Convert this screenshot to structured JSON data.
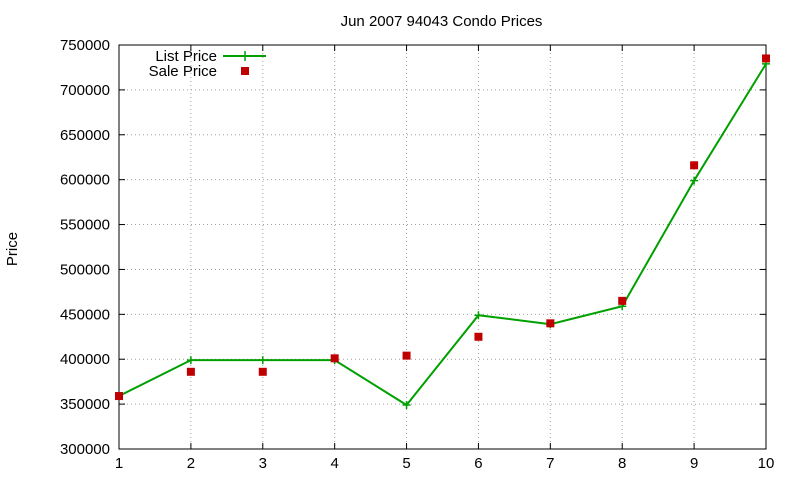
{
  "chart_data": {
    "type": "line",
    "title": "Jun 2007 94043 Condo Prices",
    "xlabel": "",
    "ylabel": "Price",
    "xlim": [
      1,
      10
    ],
    "ylim": [
      300000,
      750000
    ],
    "x_ticks": [
      1,
      2,
      3,
      4,
      5,
      6,
      7,
      8,
      9,
      10
    ],
    "y_ticks": [
      300000,
      350000,
      400000,
      450000,
      500000,
      550000,
      600000,
      650000,
      700000,
      750000
    ],
    "grid": true,
    "legend_position": "top-left",
    "series": [
      {
        "name": "List Price",
        "style": "line+cross",
        "color": "#00a000",
        "x": [
          1,
          2,
          3,
          4,
          5,
          6,
          7,
          8,
          9,
          10
        ],
        "y": [
          359000,
          399000,
          399000,
          399000,
          349000,
          449000,
          439000,
          459000,
          599000,
          729000
        ]
      },
      {
        "name": "Sale Price",
        "style": "square",
        "color": "#c00000",
        "x": [
          1,
          2,
          3,
          4,
          5,
          6,
          7,
          8,
          9,
          10
        ],
        "y": [
          359000,
          386000,
          386000,
          401000,
          404000,
          425000,
          440000,
          465000,
          616000,
          735000
        ]
      }
    ]
  }
}
